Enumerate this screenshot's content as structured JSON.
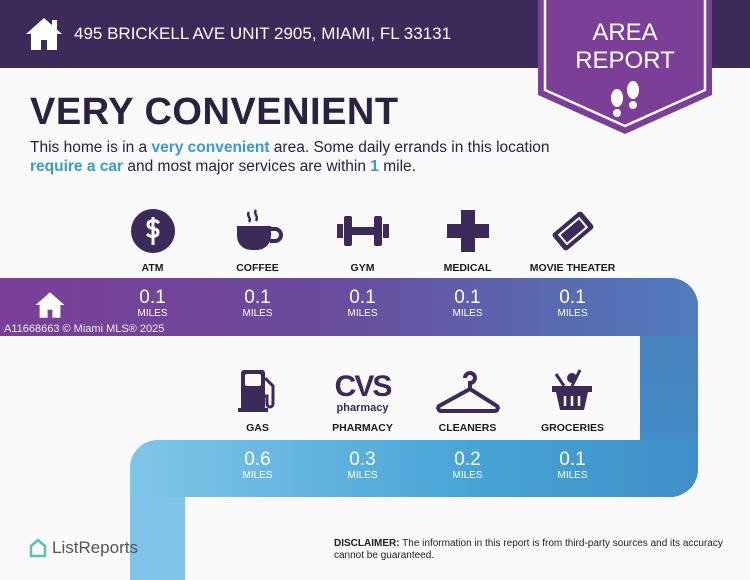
{
  "header": {
    "address": "495 BRICKELL AVE UNIT 2905, MIAMI, FL 33131",
    "badge_line1": "AREA",
    "badge_line2": "REPORT"
  },
  "title": "VERY CONVENIENT",
  "description": {
    "p1": "This home is in a ",
    "h1": "very convenient",
    "p2": " area. Some daily errands in this location ",
    "h2": "require a car",
    "p3": " and most major services are within ",
    "h3": "1",
    "p4": " mile."
  },
  "watermark": "A11668663 © Miami MLS® 2025",
  "row1": [
    {
      "label": "ATM",
      "value": "0.1",
      "unit": "MILES",
      "icon": "dollar-icon"
    },
    {
      "label": "COFFEE",
      "value": "0.1",
      "unit": "MILES",
      "icon": "coffee-icon"
    },
    {
      "label": "GYM",
      "value": "0.1",
      "unit": "MILES",
      "icon": "dumbbell-icon"
    },
    {
      "label": "MEDICAL",
      "value": "0.1",
      "unit": "MILES",
      "icon": "medical-cross-icon"
    },
    {
      "label": "MOVIE THEATER",
      "value": "0.1",
      "unit": "MILES",
      "icon": "ticket-icon"
    }
  ],
  "row2": [
    {
      "label": "GAS",
      "value": "0.6",
      "unit": "MILES",
      "icon": "gas-pump-icon"
    },
    {
      "label": "PHARMACY",
      "value": "0.3",
      "unit": "MILES",
      "icon": "cvs-pharmacy-logo",
      "logo_text": "CVS",
      "logo_sub": "pharmacy"
    },
    {
      "label": "CLEANERS",
      "value": "0.2",
      "unit": "MILES",
      "icon": "hanger-icon"
    },
    {
      "label": "GROCERIES",
      "value": "0.1",
      "unit": "MILES",
      "icon": "basket-icon"
    }
  ],
  "footer": {
    "brand": "ListReports",
    "disclaimer_label": "DISCLAIMER:",
    "disclaimer_text": " The information in this report is from third-party sources and its accuracy cannot be guaranteed."
  },
  "colors": {
    "header": "#3b2a5a",
    "badge": "#7b3f98",
    "accent": "#3a9ad0",
    "icon": "#3b2a5a"
  }
}
